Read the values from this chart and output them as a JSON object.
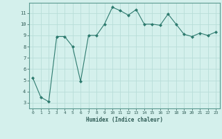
{
  "x": [
    0,
    1,
    2,
    3,
    4,
    5,
    6,
    7,
    8,
    9,
    10,
    11,
    12,
    13,
    14,
    15,
    16,
    17,
    18,
    19,
    20,
    21,
    22,
    23
  ],
  "y": [
    5.2,
    3.5,
    3.1,
    8.9,
    8.9,
    8.0,
    4.9,
    9.0,
    9.0,
    10.0,
    11.5,
    11.2,
    10.8,
    11.3,
    10.0,
    10.0,
    9.9,
    10.9,
    10.0,
    9.1,
    8.9,
    9.2,
    9.0,
    9.3
  ],
  "xlabel": "Humidex (Indice chaleur)",
  "ylim": [
    2.5,
    11.9
  ],
  "yticks": [
    3,
    4,
    5,
    6,
    7,
    8,
    9,
    10,
    11
  ],
  "xticks": [
    0,
    1,
    2,
    3,
    4,
    5,
    6,
    7,
    8,
    9,
    10,
    11,
    12,
    13,
    14,
    15,
    16,
    17,
    18,
    19,
    20,
    21,
    22,
    23
  ],
  "line_color": "#2d7a6e",
  "marker_color": "#2d7a6e",
  "bg_color": "#d4f0ec",
  "grid_color": "#b8ddd8"
}
